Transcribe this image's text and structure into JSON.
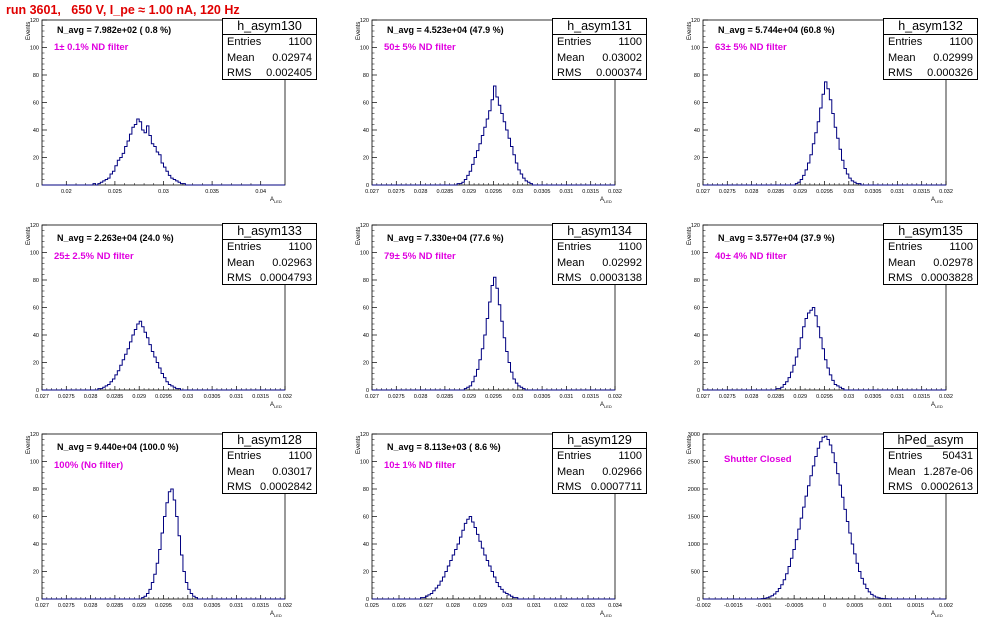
{
  "page_title": "run 3601,   650 V, I_pe ≈ 1.00 nA, 120 Hz",
  "colors": {
    "title": "#e00000",
    "histogram": "#000080",
    "filter_label": "#e000e0"
  },
  "chart_data": [
    {
      "type": "histogram",
      "name": "h_asym130",
      "stats": {
        "entries": "1100",
        "mean": "0.02974",
        "rms": "0.002405"
      },
      "n_avg": "N_avg = 7.982e+02 ( 0.8 %)",
      "filter_label": "1± 0.1% ND filter",
      "ylabel": "Events",
      "xlabel": "A_LED",
      "xlim": [
        0.0175,
        0.0425
      ],
      "ylim": [
        0,
        120
      ],
      "x_ticks": [
        "0.02",
        "0.025",
        "0.03",
        "0.035",
        "0.04"
      ],
      "y_ticks": [
        "0",
        "20",
        "40",
        "60",
        "80",
        "100",
        "120"
      ],
      "bin_width": 0.00025,
      "values": [
        0,
        0,
        0,
        0,
        0,
        0,
        0,
        0,
        0,
        0,
        0,
        0,
        0,
        0,
        0,
        0,
        0,
        0,
        0,
        0,
        0,
        1,
        0,
        1,
        2,
        3,
        4,
        5,
        8,
        10,
        14,
        18,
        20,
        23,
        28,
        32,
        37,
        42,
        44,
        48,
        46,
        40,
        38,
        43,
        36,
        30,
        28,
        24,
        22,
        16,
        13,
        10,
        7,
        5,
        4,
        3,
        2,
        1,
        1,
        0,
        0,
        0,
        0,
        0,
        0,
        0,
        0,
        0,
        0,
        0,
        0,
        0,
        0,
        0,
        0,
        0,
        0,
        0,
        0,
        0,
        0,
        0,
        0,
        0,
        0,
        0,
        0,
        0,
        0,
        0,
        0,
        0,
        0,
        0,
        0,
        0,
        0,
        0,
        0,
        0
      ]
    },
    {
      "type": "histogram",
      "name": "h_asym131",
      "stats": {
        "entries": "1100",
        "mean": "0.03002",
        "rms": "0.000374"
      },
      "n_avg": "N_avg = 4.523e+04 (47.9 %)",
      "filter_label": "50± 5% ND filter",
      "ylabel": "Events",
      "xlabel": "A_LED",
      "xlim": [
        0.027,
        0.032
      ],
      "ylim": [
        0,
        120
      ],
      "x_ticks": [
        "0.027",
        "0.0275",
        "0.028",
        "0.0285",
        "0.029",
        "0.0295",
        "0.03",
        "0.0305",
        "0.031",
        "0.0315",
        "0.032"
      ],
      "y_ticks": [
        "0",
        "20",
        "40",
        "60",
        "80",
        "100",
        "120"
      ],
      "bin_width": 5e-05,
      "values": [
        0,
        0,
        0,
        0,
        0,
        0,
        0,
        0,
        0,
        0,
        0,
        0,
        0,
        0,
        0,
        0,
        0,
        0,
        0,
        0,
        0,
        0,
        0,
        0,
        0,
        0,
        0,
        0,
        0,
        0,
        0,
        0,
        0,
        0,
        0,
        1,
        1,
        2,
        4,
        7,
        10,
        15,
        20,
        25,
        30,
        36,
        42,
        48,
        54,
        62,
        72,
        64,
        58,
        52,
        46,
        40,
        34,
        28,
        22,
        16,
        11,
        8,
        5,
        3,
        2,
        1,
        0,
        0,
        0,
        0,
        0,
        0,
        0,
        0,
        0,
        0,
        0,
        0,
        0,
        0,
        0,
        0,
        0,
        0,
        0,
        0,
        0,
        0,
        0,
        0,
        0,
        0,
        0,
        0,
        0,
        0,
        0,
        0,
        0,
        0
      ]
    },
    {
      "type": "histogram",
      "name": "h_asym132",
      "stats": {
        "entries": "1100",
        "mean": "0.02999",
        "rms": "0.000326"
      },
      "n_avg": "N_avg = 5.744e+04 (60.8 %)",
      "filter_label": "63± 5% ND filter",
      "ylabel": "Events",
      "xlabel": "A_LED",
      "xlim": [
        0.027,
        0.032
      ],
      "ylim": [
        0,
        120
      ],
      "x_ticks": [
        "0.027",
        "0.0275",
        "0.028",
        "0.0285",
        "0.029",
        "0.0295",
        "0.03",
        "0.0305",
        "0.031",
        "0.0315",
        "0.032"
      ],
      "y_ticks": [
        "0",
        "20",
        "40",
        "60",
        "80",
        "100",
        "120"
      ],
      "bin_width": 5e-05,
      "values": [
        0,
        0,
        0,
        0,
        0,
        0,
        0,
        0,
        0,
        0,
        0,
        0,
        0,
        0,
        0,
        0,
        0,
        0,
        0,
        0,
        0,
        0,
        0,
        0,
        0,
        0,
        0,
        0,
        0,
        0,
        0,
        0,
        0,
        0,
        0,
        0,
        0,
        0,
        1,
        2,
        4,
        7,
        11,
        16,
        22,
        30,
        38,
        46,
        56,
        66,
        75,
        70,
        62,
        52,
        42,
        34,
        26,
        18,
        12,
        8,
        5,
        3,
        2,
        1,
        1,
        0,
        0,
        0,
        0,
        0,
        0,
        0,
        0,
        0,
        0,
        0,
        0,
        0,
        0,
        0,
        0,
        0,
        0,
        0,
        0,
        0,
        0,
        0,
        0,
        0,
        0,
        0,
        0,
        0,
        0,
        0,
        0,
        0,
        0,
        0
      ]
    },
    {
      "type": "histogram",
      "name": "h_asym133",
      "stats": {
        "entries": "1100",
        "mean": "0.02963",
        "rms": "0.0004793"
      },
      "n_avg": "N_avg = 2.263e+04 (24.0 %)",
      "filter_label": "25± 2.5% ND filter",
      "ylabel": "Events",
      "xlabel": "A_LED",
      "xlim": [
        0.027,
        0.032
      ],
      "ylim": [
        0,
        120
      ],
      "x_ticks": [
        "0.027",
        "0.0275",
        "0.028",
        "0.0285",
        "0.029",
        "0.0295",
        "0.03",
        "0.0305",
        "0.031",
        "0.0315",
        "0.032"
      ],
      "y_ticks": [
        "0",
        "20",
        "40",
        "60",
        "80",
        "100",
        "120"
      ],
      "bin_width": 5e-05,
      "values": [
        0,
        0,
        0,
        0,
        0,
        0,
        0,
        0,
        0,
        0,
        0,
        0,
        0,
        0,
        0,
        0,
        0,
        0,
        0,
        0,
        0,
        0,
        0,
        1,
        1,
        2,
        3,
        4,
        6,
        8,
        11,
        14,
        18,
        22,
        26,
        30,
        35,
        40,
        44,
        48,
        50,
        46,
        42,
        38,
        33,
        28,
        24,
        20,
        16,
        12,
        9,
        6,
        4,
        3,
        2,
        1,
        1,
        0,
        0,
        0,
        0,
        0,
        0,
        0,
        0,
        0,
        0,
        0,
        0,
        0,
        0,
        0,
        0,
        0,
        0,
        0,
        0,
        0,
        0,
        0,
        0,
        0,
        0,
        0,
        0,
        0,
        0,
        0,
        0,
        0,
        0,
        0,
        0,
        0,
        0,
        0,
        0,
        0,
        0,
        0
      ]
    },
    {
      "type": "histogram",
      "name": "h_asym134",
      "stats": {
        "entries": "1100",
        "mean": "0.02992",
        "rms": "0.0003138"
      },
      "n_avg": "N_avg = 7.330e+04 (77.6 %)",
      "filter_label": "79± 5% ND filter",
      "ylabel": "Events",
      "xlabel": "A_LED",
      "xlim": [
        0.027,
        0.032
      ],
      "ylim": [
        0,
        120
      ],
      "x_ticks": [
        "0.027",
        "0.0275",
        "0.028",
        "0.0285",
        "0.029",
        "0.0295",
        "0.03",
        "0.0305",
        "0.031",
        "0.0315",
        "0.032"
      ],
      "y_ticks": [
        "0",
        "20",
        "40",
        "60",
        "80",
        "100",
        "120"
      ],
      "bin_width": 5e-05,
      "values": [
        0,
        0,
        0,
        0,
        0,
        0,
        0,
        0,
        0,
        0,
        0,
        0,
        0,
        0,
        0,
        0,
        0,
        0,
        0,
        0,
        0,
        0,
        0,
        0,
        0,
        0,
        0,
        0,
        0,
        0,
        0,
        0,
        0,
        0,
        0,
        0,
        0,
        0,
        1,
        2,
        3,
        6,
        10,
        15,
        22,
        30,
        40,
        52,
        64,
        76,
        82,
        74,
        62,
        50,
        38,
        28,
        20,
        13,
        8,
        5,
        3,
        2,
        1,
        0,
        0,
        0,
        0,
        0,
        0,
        0,
        0,
        0,
        0,
        0,
        0,
        0,
        0,
        0,
        0,
        0,
        0,
        0,
        0,
        0,
        0,
        0,
        0,
        0,
        0,
        0,
        0,
        0,
        0,
        0,
        0,
        0,
        0,
        0,
        0,
        0
      ]
    },
    {
      "type": "histogram",
      "name": "h_asym135",
      "stats": {
        "entries": "1100",
        "mean": "0.02978",
        "rms": "0.0003828"
      },
      "n_avg": "N_avg = 3.577e+04 (37.9 %)",
      "filter_label": "40± 4% ND filter",
      "ylabel": "Events",
      "xlabel": "A_LED",
      "xlim": [
        0.027,
        0.032
      ],
      "ylim": [
        0,
        120
      ],
      "x_ticks": [
        "0.027",
        "0.0275",
        "0.028",
        "0.0285",
        "0.029",
        "0.0295",
        "0.03",
        "0.0305",
        "0.031",
        "0.0315",
        "0.032"
      ],
      "y_ticks": [
        "0",
        "20",
        "40",
        "60",
        "80",
        "100",
        "120"
      ],
      "bin_width": 5e-05,
      "values": [
        0,
        0,
        0,
        0,
        0,
        0,
        0,
        0,
        0,
        0,
        0,
        0,
        0,
        0,
        0,
        0,
        0,
        0,
        0,
        0,
        0,
        0,
        0,
        0,
        0,
        0,
        0,
        0,
        0,
        0,
        1,
        1,
        2,
        4,
        6,
        9,
        13,
        18,
        24,
        30,
        38,
        46,
        52,
        56,
        58,
        60,
        54,
        46,
        38,
        30,
        22,
        16,
        11,
        7,
        4,
        3,
        2,
        1,
        0,
        0,
        0,
        0,
        0,
        0,
        0,
        0,
        0,
        0,
        0,
        0,
        0,
        0,
        0,
        0,
        0,
        0,
        0,
        0,
        0,
        0,
        0,
        0,
        0,
        0,
        0,
        0,
        0,
        0,
        0,
        0,
        0,
        0,
        0,
        0,
        0,
        0,
        0,
        0,
        0,
        0
      ]
    },
    {
      "type": "histogram",
      "name": "h_asym128",
      "stats": {
        "entries": "1100",
        "mean": "0.03017",
        "rms": "0.0002842"
      },
      "n_avg": "N_avg = 9.440e+04 (100.0 %)",
      "filter_label": "100% (No filter)",
      "ylabel": "Events",
      "xlabel": "A_LED",
      "xlim": [
        0.027,
        0.032
      ],
      "ylim": [
        0,
        120
      ],
      "x_ticks": [
        "0.027",
        "0.0275",
        "0.028",
        "0.0285",
        "0.029",
        "0.0295",
        "0.03",
        "0.0305",
        "0.031",
        "0.0315",
        "0.032"
      ],
      "y_ticks": [
        "0",
        "20",
        "40",
        "60",
        "80",
        "100",
        "120"
      ],
      "bin_width": 5e-05,
      "values": [
        0,
        0,
        0,
        0,
        0,
        0,
        0,
        0,
        0,
        0,
        0,
        0,
        0,
        0,
        0,
        0,
        0,
        0,
        0,
        0,
        0,
        0,
        0,
        0,
        0,
        0,
        0,
        0,
        0,
        0,
        0,
        0,
        0,
        0,
        0,
        0,
        0,
        0,
        0,
        0,
        0,
        1,
        2,
        4,
        7,
        12,
        18,
        26,
        36,
        48,
        60,
        70,
        78,
        80,
        72,
        60,
        46,
        32,
        20,
        12,
        7,
        4,
        2,
        1,
        0,
        0,
        0,
        0,
        0,
        0,
        0,
        0,
        0,
        0,
        0,
        0,
        0,
        0,
        0,
        0,
        0,
        0,
        0,
        0,
        0,
        0,
        0,
        0,
        0,
        0,
        0,
        0,
        0,
        0,
        0,
        0,
        0,
        0,
        0,
        0
      ]
    },
    {
      "type": "histogram",
      "name": "h_asym129",
      "stats": {
        "entries": "1100",
        "mean": "0.02966",
        "rms": "0.0007711"
      },
      "n_avg": "N_avg = 8.113e+03 ( 8.6 %)",
      "filter_label": "10± 1% ND filter",
      "ylabel": "Events",
      "xlabel": "A_LED",
      "xlim": [
        0.025,
        0.034
      ],
      "ylim": [
        0,
        120
      ],
      "x_ticks": [
        "0.025",
        "0.026",
        "0.027",
        "0.028",
        "0.029",
        "0.03",
        "0.031",
        "0.032",
        "0.033",
        "0.034"
      ],
      "y_ticks": [
        "0",
        "20",
        "40",
        "60",
        "80",
        "100",
        "120"
      ],
      "bin_width": 9e-05,
      "values": [
        0,
        0,
        0,
        0,
        0,
        0,
        0,
        0,
        0,
        0,
        0,
        0,
        0,
        0,
        0,
        0,
        0,
        0,
        0,
        0,
        1,
        1,
        2,
        3,
        4,
        6,
        8,
        10,
        13,
        16,
        20,
        24,
        28,
        32,
        36,
        40,
        45,
        50,
        55,
        58,
        60,
        56,
        52,
        47,
        42,
        37,
        32,
        28,
        24,
        20,
        16,
        12,
        9,
        7,
        5,
        4,
        3,
        2,
        1,
        1,
        0,
        0,
        0,
        0,
        0,
        0,
        0,
        0,
        0,
        0,
        0,
        0,
        0,
        0,
        0,
        0,
        0,
        0,
        0,
        0,
        0,
        0,
        0,
        0,
        0,
        0,
        0,
        0,
        0,
        0,
        0,
        0,
        0,
        0,
        0,
        0,
        0,
        0,
        0,
        0
      ]
    },
    {
      "type": "histogram",
      "name": "hPed_asym",
      "stats": {
        "entries": "50431",
        "mean": "1.287e-06",
        "rms": "0.0002613"
      },
      "n_avg": "",
      "filter_label": "Shutter Closed",
      "ylabel": "Events",
      "xlabel": "A_LED",
      "xlim": [
        -0.002,
        0.002
      ],
      "ylim": [
        0,
        3000
      ],
      "x_ticks": [
        "-0.002",
        "-0.0015",
        "-0.001",
        "-0.0005",
        "0",
        "0.0005",
        "0.001",
        "0.0015",
        "0.002"
      ],
      "y_ticks": [
        "0",
        "500",
        "1000",
        "1500",
        "2000",
        "2500",
        "3000"
      ],
      "bin_width": 4e-05,
      "values": [
        0,
        0,
        0,
        0,
        0,
        0,
        0,
        0,
        0,
        0,
        0,
        0,
        0,
        0,
        0,
        0,
        0,
        0,
        0,
        0,
        0,
        0,
        1,
        3,
        6,
        12,
        22,
        38,
        60,
        92,
        135,
        190,
        260,
        350,
        460,
        590,
        740,
        900,
        1080,
        1270,
        1470,
        1670,
        1870,
        2060,
        2240,
        2420,
        2590,
        2740,
        2860,
        2940,
        2960,
        2900,
        2800,
        2660,
        2480,
        2280,
        2070,
        1850,
        1630,
        1410,
        1200,
        1000,
        820,
        650,
        500,
        375,
        270,
        190,
        130,
        85,
        55,
        34,
        20,
        12,
        7,
        4,
        2,
        1,
        0,
        0,
        0,
        0,
        0,
        0,
        0,
        0,
        0,
        0,
        0,
        0,
        0,
        0,
        0,
        0,
        0,
        0,
        0,
        0,
        0,
        0
      ]
    }
  ]
}
